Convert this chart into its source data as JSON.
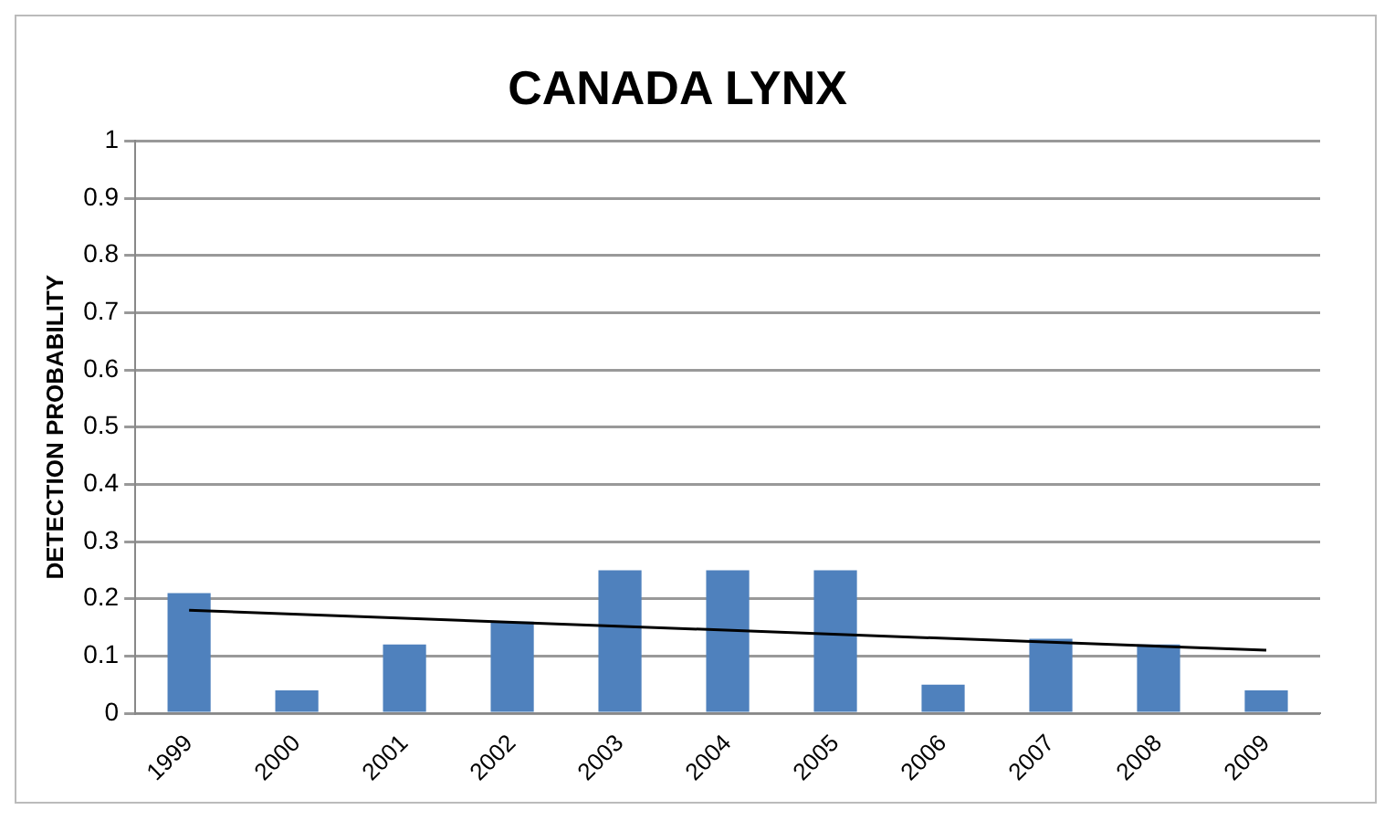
{
  "chart_data": {
    "type": "bar",
    "title": "CANADA LYNX",
    "ylabel": "DETECTION PROBABILITY",
    "categories": [
      "1999",
      "2000",
      "2001",
      "2002",
      "2003",
      "2004",
      "2005",
      "2006",
      "2007",
      "2008",
      "2009"
    ],
    "series": [
      {
        "color": "#4f81bd",
        "values": [
          0.21,
          0.04,
          0.12,
          0.16,
          0.25,
          0.25,
          0.25,
          0.05,
          0.13,
          0.12,
          0.04
        ]
      },
      {
        "type": "line",
        "color": "#000000",
        "values": [
          0.18,
          null,
          null,
          null,
          null,
          null,
          null,
          null,
          null,
          null,
          0.11
        ]
      }
    ],
    "ylim": [
      0,
      1
    ],
    "yticks": [
      0,
      0.1,
      0.2,
      0.3,
      0.4,
      0.5,
      0.6,
      0.7,
      0.8,
      0.9,
      1
    ],
    "grid": "y",
    "legend": false
  }
}
